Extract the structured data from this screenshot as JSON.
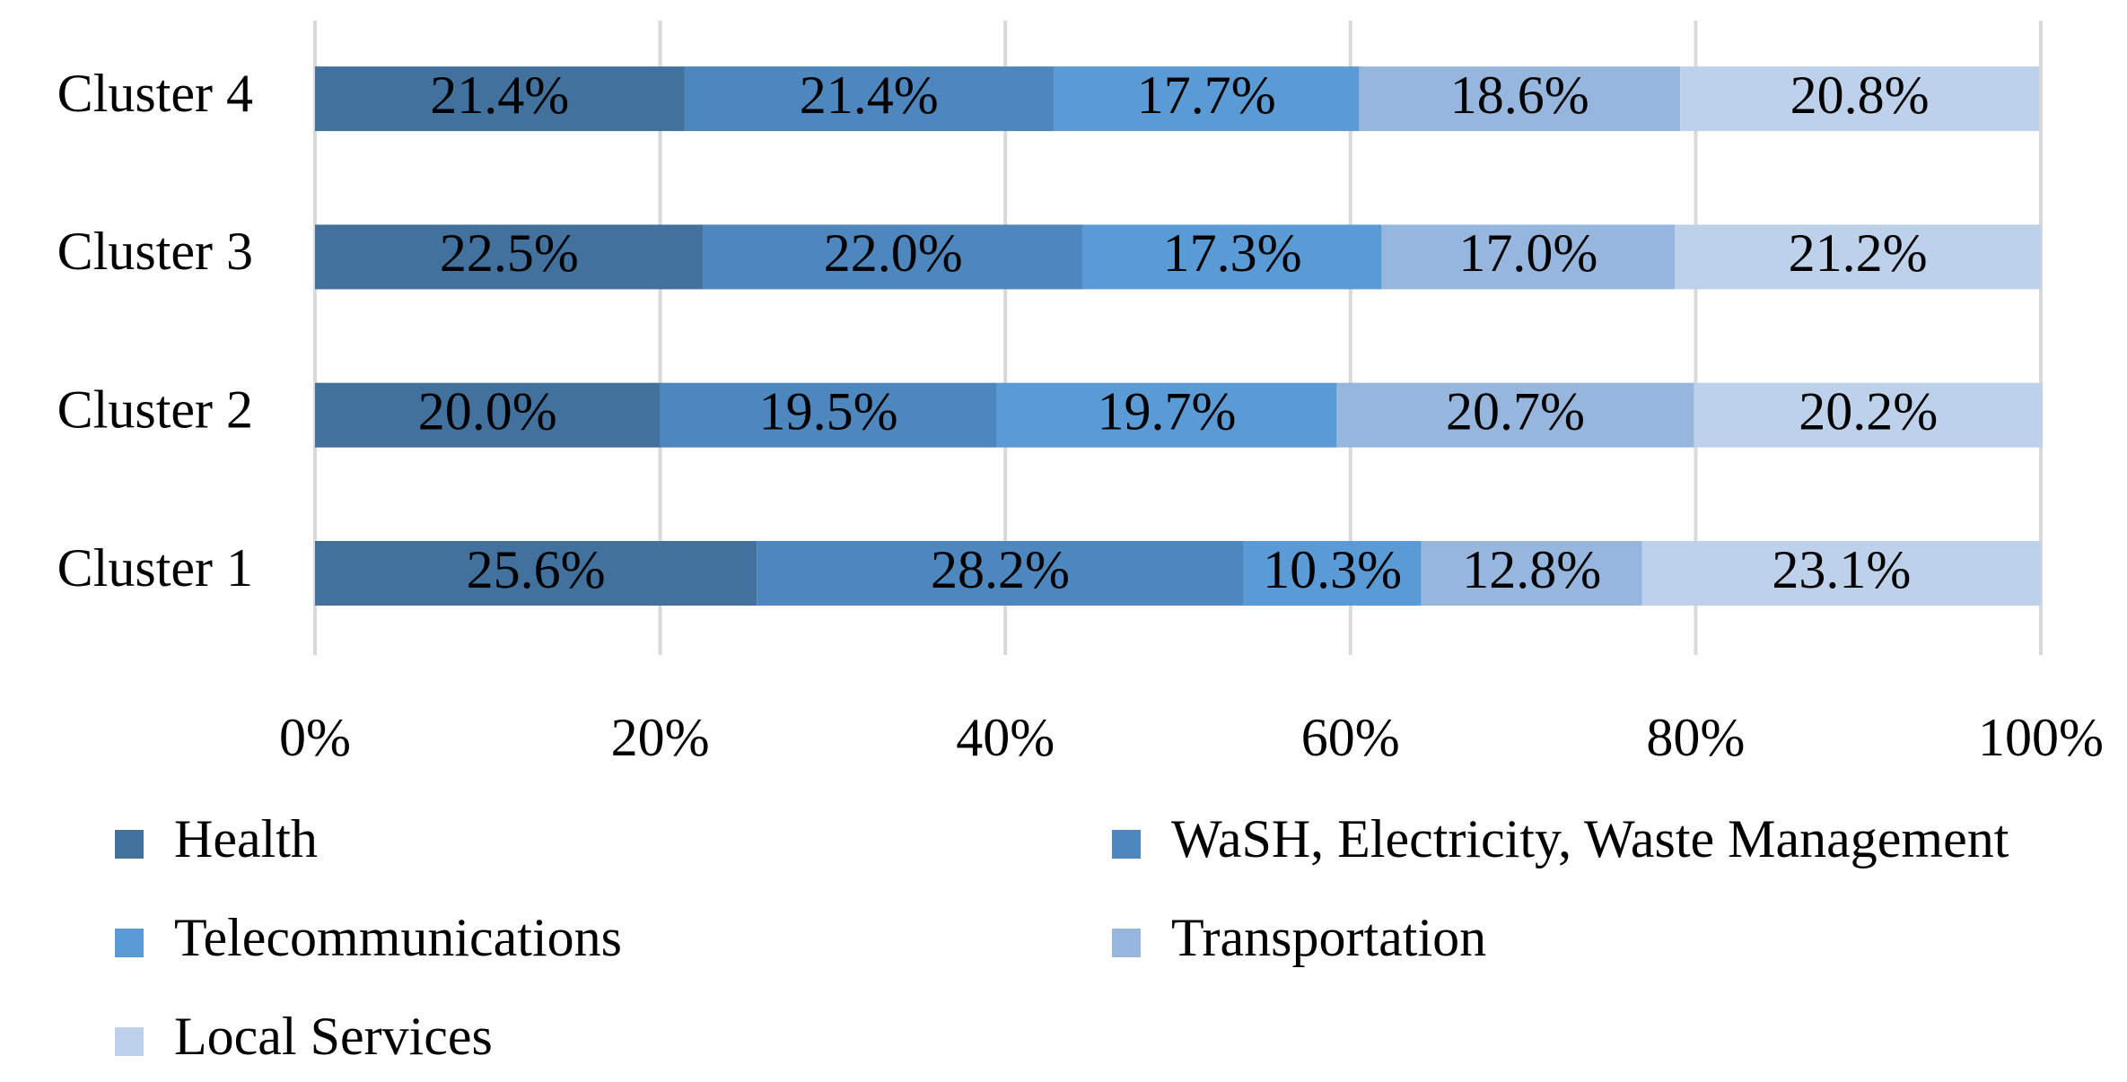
{
  "chart_data": {
    "type": "stacked-barh",
    "categories": [
      "Cluster 1",
      "Cluster 2",
      "Cluster 3",
      "Cluster 4"
    ],
    "series": [
      {
        "name": "Health",
        "color": "#41719c",
        "values": [
          25.6,
          20.0,
          22.5,
          21.4
        ],
        "value_labels": [
          "25.6%",
          "20.0%",
          "22.5%",
          "21.4%"
        ]
      },
      {
        "name": "WaSH, Electricity, Waste Management",
        "color": "#4e87bd",
        "values": [
          28.2,
          19.5,
          22.0,
          21.4
        ],
        "value_labels": [
          "28.2%",
          "19.5%",
          "22.0%",
          "21.4%"
        ]
      },
      {
        "name": "Telecommunications",
        "color": "#5b9bd5",
        "values": [
          10.3,
          19.7,
          17.3,
          17.7
        ],
        "value_labels": [
          "10.3%",
          "19.7%",
          "17.3%",
          "17.7%"
        ]
      },
      {
        "name": "Transportation",
        "color": "#97b6de",
        "values": [
          12.8,
          20.7,
          17.0,
          18.6
        ],
        "value_labels": [
          "12.8%",
          "20.7%",
          "17.0%",
          "18.6%"
        ]
      },
      {
        "name": "Local Services",
        "color": "#bdd1ea",
        "values": [
          23.1,
          20.2,
          21.2,
          20.8
        ],
        "value_labels": [
          "23.1%",
          "20.2%",
          "21.2%",
          "20.8%"
        ]
      }
    ],
    "xlim": [
      0,
      100
    ],
    "xticks": [
      {
        "value": 0,
        "label": "0%"
      },
      {
        "value": 20,
        "label": "20%"
      },
      {
        "value": 40,
        "label": "40%"
      },
      {
        "value": 60,
        "label": "60%"
      },
      {
        "value": 80,
        "label": "80%"
      },
      {
        "value": 100,
        "label": "100%"
      }
    ],
    "grid": true
  }
}
